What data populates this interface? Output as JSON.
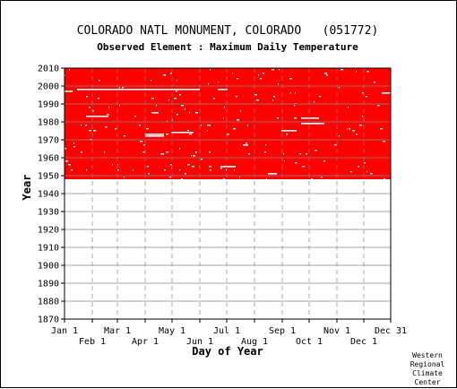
{
  "chart_data": {
    "type": "heatmap",
    "title": "COLORADO NATL MONUMENT, COLORADO   (051772)",
    "subtitle": "Observed Element : Maximum Daily Temperature",
    "xlabel": "Day of Year",
    "ylabel": "Year",
    "x_tick_labels_upper": [
      "Jan 1",
      "Mar 1",
      "May 1",
      "Jul 1",
      "Sep 1",
      "Nov 1",
      "Dec 31"
    ],
    "x_tick_days_upper": [
      1,
      60,
      121,
      182,
      244,
      305,
      365
    ],
    "x_tick_labels_lower": [
      "Feb 1",
      "Apr 1",
      "Jun 1",
      "Aug 1",
      "Oct 1",
      "Dec 1"
    ],
    "x_tick_days_lower": [
      32,
      91,
      152,
      213,
      274,
      335
    ],
    "xlim": [
      1,
      365
    ],
    "y_ticks": [
      1870,
      1880,
      1890,
      1900,
      1910,
      1920,
      1930,
      1940,
      1950,
      1960,
      1970,
      1980,
      1990,
      2000,
      2010
    ],
    "ylim": [
      1870,
      2010
    ],
    "data_color": "#ff0000",
    "grid_color": "#888888",
    "record_years": [
      1948,
      2010
    ],
    "missing_segments": [
      {
        "year": 1998,
        "start": 15,
        "end": 152
      },
      {
        "year": 1998,
        "start": 172,
        "end": 183
      },
      {
        "year": 1997,
        "start": 1,
        "end": 10
      },
      {
        "year": 1996,
        "start": 355,
        "end": 365
      },
      {
        "year": 1983,
        "start": 25,
        "end": 50
      },
      {
        "year": 1985,
        "start": 98,
        "end": 106
      },
      {
        "year": 1973,
        "start": 91,
        "end": 112
      },
      {
        "year": 1972,
        "start": 91,
        "end": 112
      },
      {
        "year": 1974,
        "start": 120,
        "end": 145
      },
      {
        "year": 1975,
        "start": 243,
        "end": 260
      },
      {
        "year": 1979,
        "start": 265,
        "end": 291
      },
      {
        "year": 1982,
        "start": 265,
        "end": 285
      },
      {
        "year": 1955,
        "start": 175,
        "end": 192
      },
      {
        "year": 1967,
        "start": 200,
        "end": 206
      },
      {
        "year": 1951,
        "start": 228,
        "end": 238
      }
    ],
    "credit": [
      "Western",
      "Regional",
      "Climate",
      "Center"
    ]
  }
}
